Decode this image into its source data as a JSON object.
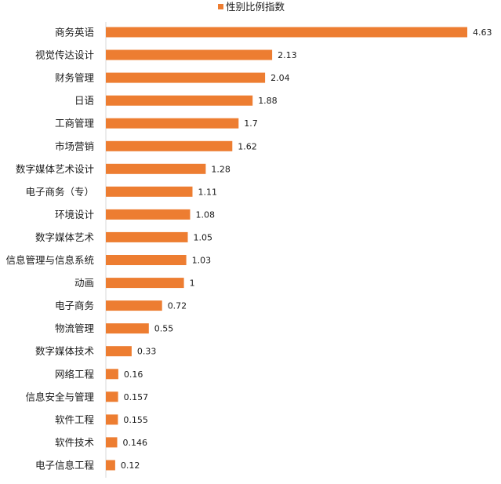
{
  "chart_data": {
    "type": "bar",
    "orientation": "horizontal",
    "legend": {
      "label": "性别比例指数",
      "position": "top"
    },
    "series": [
      {
        "name": "性别比例指数",
        "color": "#ED7D31"
      }
    ],
    "categories": [
      "商务英语",
      "视觉传达设计",
      "财务管理",
      "日语",
      "工商管理",
      "市场营销",
      "数字媒体艺术设计",
      "电子商务（专）",
      "环境设计",
      "数字媒体艺术",
      "信息管理与信息系统",
      "动画",
      "电子商务",
      "物流管理",
      "数字媒体技术",
      "网络工程",
      "信息安全与管理",
      "软件工程",
      "软件技术",
      "电子信息工程"
    ],
    "values": [
      4.63,
      2.13,
      2.04,
      1.88,
      1.7,
      1.62,
      1.28,
      1.11,
      1.08,
      1.05,
      1.03,
      1,
      0.72,
      0.55,
      0.33,
      0.16,
      0.157,
      0.155,
      0.146,
      0.12
    ],
    "value_labels": [
      "4.63",
      "2.13",
      "2.04",
      "1.88",
      "1.7",
      "1.62",
      "1.28",
      "1.11",
      "1.08",
      "1.05",
      "1.03",
      "1",
      "0.72",
      "0.55",
      "0.33",
      "0.16",
      "0.157",
      "0.155",
      "0.146",
      "0.12"
    ],
    "xlim": [
      0,
      4.63
    ],
    "grid": false,
    "show_axis_ticks": false
  }
}
